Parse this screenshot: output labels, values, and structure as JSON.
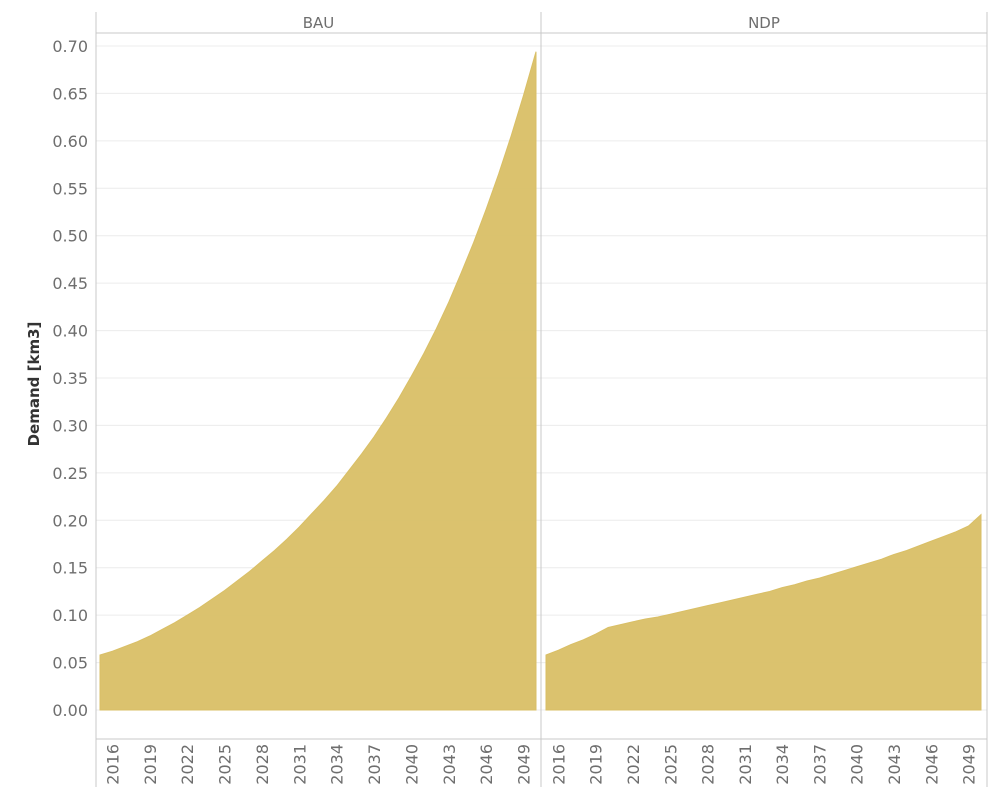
{
  "chart_data": {
    "type": "area",
    "ylabel": "Demand [km3]",
    "ylim": [
      0,
      0.7
    ],
    "y_ticks": [
      "0.00",
      "0.05",
      "0.10",
      "0.15",
      "0.20",
      "0.25",
      "0.30",
      "0.35",
      "0.40",
      "0.45",
      "0.50",
      "0.55",
      "0.60",
      "0.65",
      "0.70"
    ],
    "x_ticks": [
      "2016",
      "2019",
      "2022",
      "2025",
      "2028",
      "2031",
      "2034",
      "2037",
      "2040",
      "2043",
      "2046",
      "2049"
    ],
    "xlim": [
      2015,
      2050
    ],
    "grid": true,
    "color": "#d9bf66",
    "panels": [
      {
        "title": "BAU",
        "x": [
          2015,
          2016,
          2017,
          2018,
          2019,
          2020,
          2021,
          2022,
          2023,
          2024,
          2025,
          2026,
          2027,
          2028,
          2029,
          2030,
          2031,
          2032,
          2033,
          2034,
          2035,
          2036,
          2037,
          2038,
          2039,
          2040,
          2041,
          2042,
          2043,
          2044,
          2045,
          2046,
          2047,
          2048,
          2049,
          2050
        ],
        "values": [
          0.058,
          0.062,
          0.067,
          0.072,
          0.078,
          0.085,
          0.092,
          0.1,
          0.108,
          0.117,
          0.126,
          0.136,
          0.146,
          0.157,
          0.168,
          0.18,
          0.193,
          0.207,
          0.221,
          0.236,
          0.253,
          0.27,
          0.288,
          0.308,
          0.329,
          0.352,
          0.376,
          0.402,
          0.43,
          0.461,
          0.493,
          0.528,
          0.565,
          0.605,
          0.648,
          0.694
        ]
      },
      {
        "title": "NDP",
        "x": [
          2015,
          2016,
          2017,
          2018,
          2019,
          2020,
          2021,
          2022,
          2023,
          2024,
          2025,
          2026,
          2027,
          2028,
          2029,
          2030,
          2031,
          2032,
          2033,
          2034,
          2035,
          2036,
          2037,
          2038,
          2039,
          2040,
          2041,
          2042,
          2043,
          2044,
          2045,
          2046,
          2047,
          2048,
          2049,
          2050
        ],
        "values": [
          0.058,
          0.063,
          0.069,
          0.074,
          0.08,
          0.087,
          0.09,
          0.093,
          0.096,
          0.098,
          0.101,
          0.104,
          0.107,
          0.11,
          0.113,
          0.116,
          0.119,
          0.122,
          0.125,
          0.129,
          0.132,
          0.136,
          0.139,
          0.143,
          0.147,
          0.151,
          0.155,
          0.159,
          0.164,
          0.168,
          0.173,
          0.178,
          0.183,
          0.188,
          0.194,
          0.206
        ]
      }
    ]
  }
}
